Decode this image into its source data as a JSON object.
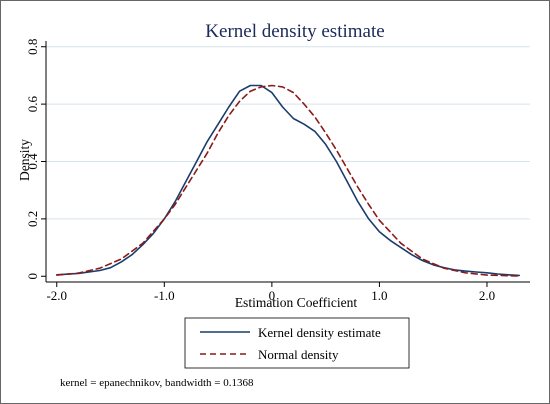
{
  "chart_data": {
    "type": "line",
    "title": "Kernel density estimate",
    "xlabel": "Estimation Coefficient",
    "ylabel": "Density",
    "xlim": [
      -2.1,
      2.4
    ],
    "ylim": [
      -0.02,
      0.82
    ],
    "xticks": [
      -2.0,
      -1.0,
      0.0,
      1.0,
      2.0
    ],
    "xtick_labels": [
      "-2.0",
      "-1.0",
      "0",
      "1.0",
      "2.0"
    ],
    "yticks": [
      0,
      0.2,
      0.4,
      0.6,
      0.8
    ],
    "ytick_labels": [
      "0",
      "0.2",
      "0.4",
      "0.6",
      "0.8"
    ],
    "grid": true,
    "legend_position": "bottom",
    "series": [
      {
        "name": "Kernel density estimate",
        "color": "#1a3d6e",
        "dash": "solid",
        "x": [
          -2.0,
          -1.8,
          -1.6,
          -1.5,
          -1.4,
          -1.3,
          -1.2,
          -1.1,
          -1.0,
          -0.9,
          -0.8,
          -0.7,
          -0.6,
          -0.5,
          -0.4,
          -0.3,
          -0.2,
          -0.1,
          0.0,
          0.1,
          0.2,
          0.3,
          0.4,
          0.5,
          0.6,
          0.7,
          0.8,
          0.9,
          1.0,
          1.1,
          1.2,
          1.3,
          1.4,
          1.5,
          1.6,
          1.7,
          1.8,
          1.9,
          2.0,
          2.1,
          2.2,
          2.3
        ],
        "y": [
          0.005,
          0.01,
          0.02,
          0.03,
          0.05,
          0.075,
          0.11,
          0.15,
          0.2,
          0.26,
          0.33,
          0.4,
          0.47,
          0.53,
          0.59,
          0.645,
          0.665,
          0.665,
          0.64,
          0.59,
          0.55,
          0.53,
          0.505,
          0.46,
          0.4,
          0.33,
          0.26,
          0.2,
          0.155,
          0.125,
          0.1,
          0.075,
          0.055,
          0.04,
          0.03,
          0.022,
          0.018,
          0.015,
          0.012,
          0.008,
          0.005,
          0.003
        ]
      },
      {
        "name": "Normal density",
        "color": "#8b1a1a",
        "dash": "dashed",
        "x": [
          -2.0,
          -1.8,
          -1.6,
          -1.4,
          -1.2,
          -1.0,
          -0.9,
          -0.8,
          -0.7,
          -0.6,
          -0.5,
          -0.4,
          -0.3,
          -0.2,
          -0.1,
          0.0,
          0.1,
          0.2,
          0.3,
          0.4,
          0.5,
          0.6,
          0.7,
          0.8,
          0.9,
          1.0,
          1.2,
          1.4,
          1.6,
          1.8,
          2.0,
          2.2,
          2.3
        ],
        "y": [
          0.004,
          0.011,
          0.028,
          0.06,
          0.115,
          0.2,
          0.25,
          0.31,
          0.37,
          0.43,
          0.5,
          0.56,
          0.61,
          0.645,
          0.66,
          0.665,
          0.66,
          0.64,
          0.6,
          0.555,
          0.5,
          0.44,
          0.375,
          0.31,
          0.25,
          0.195,
          0.115,
          0.06,
          0.028,
          0.012,
          0.004,
          0.002,
          0.001
        ]
      }
    ],
    "note": "kernel = epanechnikov, bandwidth = 0.1368"
  }
}
